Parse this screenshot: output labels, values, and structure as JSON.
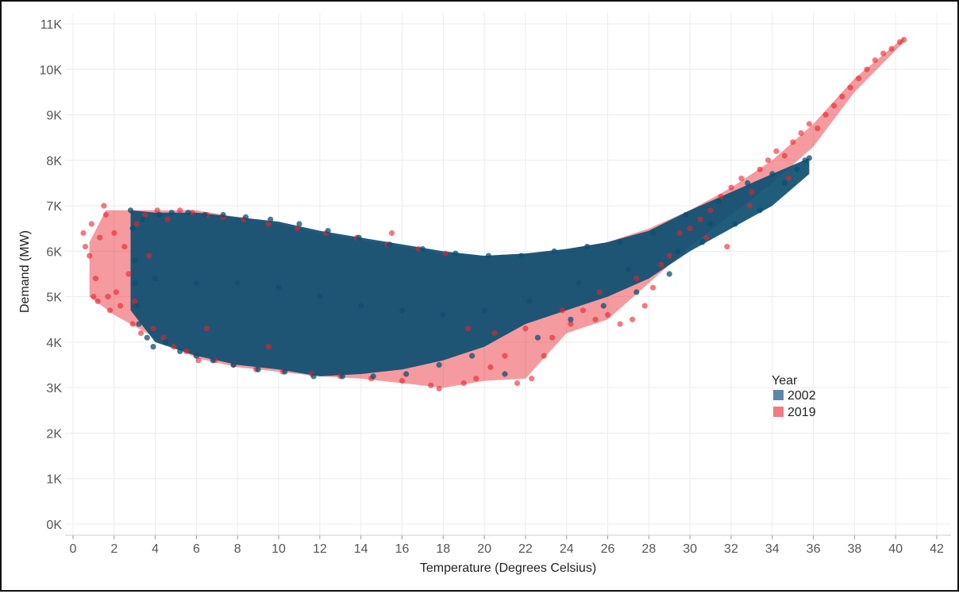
{
  "chart_data": {
    "type": "scatter",
    "xlabel": "Temperature (Degrees Celsius)",
    "ylabel": "Demand (MW)",
    "xlim": [
      0,
      42
    ],
    "ylim": [
      0,
      11000
    ],
    "x_ticks": [
      "0",
      "2",
      "4",
      "6",
      "8",
      "10",
      "12",
      "14",
      "16",
      "18",
      "20",
      "22",
      "24",
      "26",
      "28",
      "30",
      "32",
      "34",
      "36",
      "38",
      "40",
      "42"
    ],
    "y_ticks": [
      "0K",
      "1K",
      "2K",
      "3K",
      "4K",
      "5K",
      "6K",
      "7K",
      "8K",
      "9K",
      "10K",
      "11K"
    ],
    "grid": true,
    "legend": {
      "title": "Year",
      "position": "right",
      "items": [
        {
          "name": "2002",
          "color": "#5b87a8"
        },
        {
          "name": "2019",
          "color": "#ef7c80"
        }
      ]
    },
    "series": [
      {
        "name": "2019",
        "color": "#e8222b",
        "points": [
          [
            0.5,
            6400
          ],
          [
            0.6,
            6100
          ],
          [
            0.8,
            5900
          ],
          [
            0.9,
            6600
          ],
          [
            1.0,
            5000
          ],
          [
            1.1,
            5400
          ],
          [
            1.2,
            4900
          ],
          [
            1.3,
            6300
          ],
          [
            1.5,
            7000
          ],
          [
            1.6,
            6800
          ],
          [
            1.7,
            5000
          ],
          [
            1.8,
            4700
          ],
          [
            2.0,
            6400
          ],
          [
            2.1,
            5100
          ],
          [
            2.3,
            4800
          ],
          [
            2.5,
            6100
          ],
          [
            2.7,
            5500
          ],
          [
            2.9,
            4400
          ],
          [
            3.1,
            6600
          ],
          [
            3.3,
            4200
          ],
          [
            3.5,
            6800
          ],
          [
            3.7,
            5900
          ],
          [
            3.9,
            4300
          ],
          [
            4.1,
            6900
          ],
          [
            4.4,
            4100
          ],
          [
            4.6,
            6700
          ],
          [
            4.9,
            3900
          ],
          [
            5.2,
            6900
          ],
          [
            5.5,
            3800
          ],
          [
            5.8,
            6850
          ],
          [
            6.1,
            3600
          ],
          [
            6.5,
            6800
          ],
          [
            6.9,
            3600
          ],
          [
            7.3,
            6750
          ],
          [
            7.8,
            3500
          ],
          [
            8.3,
            6700
          ],
          [
            8.9,
            3400
          ],
          [
            9.5,
            6600
          ],
          [
            10.2,
            3350
          ],
          [
            10.9,
            6500
          ],
          [
            11.6,
            3300
          ],
          [
            12.3,
            6400
          ],
          [
            13.0,
            3250
          ],
          [
            13.8,
            6300
          ],
          [
            14.5,
            3200
          ],
          [
            15.3,
            6150
          ],
          [
            16.0,
            3150
          ],
          [
            16.8,
            6050
          ],
          [
            17.4,
            3050
          ],
          [
            18.1,
            5950
          ],
          [
            17.8,
            2980
          ],
          [
            19.0,
            3100
          ],
          [
            19.6,
            3200
          ],
          [
            20.3,
            3450
          ],
          [
            21.0,
            3700
          ],
          [
            21.6,
            3100
          ],
          [
            22.3,
            3200
          ],
          [
            22.9,
            3700
          ],
          [
            23.3,
            4100
          ],
          [
            23.8,
            4700
          ],
          [
            24.2,
            4400
          ],
          [
            24.8,
            4700
          ],
          [
            25.4,
            4500
          ],
          [
            26.0,
            4600
          ],
          [
            26.6,
            4400
          ],
          [
            27.2,
            4500
          ],
          [
            27.8,
            4800
          ],
          [
            28.2,
            5200
          ],
          [
            28.6,
            5700
          ],
          [
            29.0,
            5900
          ],
          [
            29.5,
            6400
          ],
          [
            30.0,
            6500
          ],
          [
            30.5,
            6700
          ],
          [
            31.0,
            6900
          ],
          [
            31.5,
            7200
          ],
          [
            32.0,
            7400
          ],
          [
            32.5,
            7600
          ],
          [
            32.9,
            7000
          ],
          [
            33.4,
            7800
          ],
          [
            33.8,
            8000
          ],
          [
            34.2,
            8200
          ],
          [
            34.6,
            8100
          ],
          [
            35.0,
            8400
          ],
          [
            35.4,
            8600
          ],
          [
            35.8,
            8800
          ],
          [
            36.2,
            8700
          ],
          [
            36.6,
            9000
          ],
          [
            37.0,
            9200
          ],
          [
            37.4,
            9400
          ],
          [
            37.8,
            9600
          ],
          [
            38.2,
            9800
          ],
          [
            38.6,
            10000
          ],
          [
            39.0,
            10200
          ],
          [
            39.4,
            10350
          ],
          [
            39.8,
            10450
          ],
          [
            40.2,
            10600
          ],
          [
            40.4,
            10650
          ],
          [
            30.8,
            6300
          ],
          [
            31.8,
            6100
          ],
          [
            33.0,
            7300
          ],
          [
            34.8,
            7600
          ],
          [
            27.4,
            5400
          ],
          [
            25.6,
            5100
          ],
          [
            22.0,
            4300
          ],
          [
            20.5,
            4200
          ],
          [
            19.2,
            4300
          ],
          [
            15.5,
            6400
          ],
          [
            9.5,
            3900
          ],
          [
            6.5,
            4300
          ],
          [
            3.0,
            4900
          ]
        ]
      },
      {
        "name": "2002",
        "color": "#0c4f70",
        "points": [
          [
            2.8,
            6900
          ],
          [
            2.9,
            6500
          ],
          [
            3.0,
            5800
          ],
          [
            3.0,
            5300
          ],
          [
            3.1,
            4800
          ],
          [
            3.2,
            4400
          ],
          [
            3.4,
            6700
          ],
          [
            3.6,
            4100
          ],
          [
            3.9,
            3900
          ],
          [
            4.2,
            6800
          ],
          [
            4.5,
            4000
          ],
          [
            4.8,
            6850
          ],
          [
            5.2,
            3800
          ],
          [
            5.6,
            6850
          ],
          [
            6.0,
            3700
          ],
          [
            6.4,
            6800
          ],
          [
            6.8,
            3600
          ],
          [
            7.3,
            6800
          ],
          [
            7.8,
            3500
          ],
          [
            8.4,
            6750
          ],
          [
            9.0,
            3400
          ],
          [
            9.6,
            6700
          ],
          [
            10.3,
            3350
          ],
          [
            11.0,
            6600
          ],
          [
            11.7,
            3250
          ],
          [
            12.4,
            6450
          ],
          [
            13.1,
            3250
          ],
          [
            13.9,
            6300
          ],
          [
            14.6,
            3250
          ],
          [
            15.4,
            6150
          ],
          [
            16.2,
            3300
          ],
          [
            17.0,
            6050
          ],
          [
            17.8,
            3500
          ],
          [
            18.6,
            5950
          ],
          [
            19.4,
            3700
          ],
          [
            20.2,
            5900
          ],
          [
            21.0,
            3300
          ],
          [
            21.8,
            5900
          ],
          [
            22.6,
            4100
          ],
          [
            23.4,
            6000
          ],
          [
            24.2,
            4500
          ],
          [
            25.0,
            6100
          ],
          [
            25.8,
            4800
          ],
          [
            26.6,
            6200
          ],
          [
            27.4,
            5100
          ],
          [
            28.2,
            6400
          ],
          [
            29.0,
            5500
          ],
          [
            29.8,
            6800
          ],
          [
            30.6,
            6200
          ],
          [
            31.4,
            7100
          ],
          [
            32.2,
            6600
          ],
          [
            32.8,
            7500
          ],
          [
            33.4,
            6900
          ],
          [
            34.0,
            7700
          ],
          [
            34.6,
            7500
          ],
          [
            35.2,
            7800
          ],
          [
            35.6,
            8000
          ],
          [
            35.8,
            8050
          ],
          [
            31.0,
            6600
          ],
          [
            29.4,
            6000
          ],
          [
            27.0,
            5600
          ],
          [
            24.6,
            5300
          ],
          [
            22.2,
            4900
          ],
          [
            20.0,
            4700
          ],
          [
            18.0,
            4600
          ],
          [
            16.0,
            4700
          ],
          [
            14.0,
            4800
          ],
          [
            12.0,
            5000
          ],
          [
            10.0,
            5200
          ],
          [
            8.0,
            5300
          ],
          [
            6.0,
            5300
          ],
          [
            4.0,
            5400
          ]
        ]
      }
    ]
  }
}
